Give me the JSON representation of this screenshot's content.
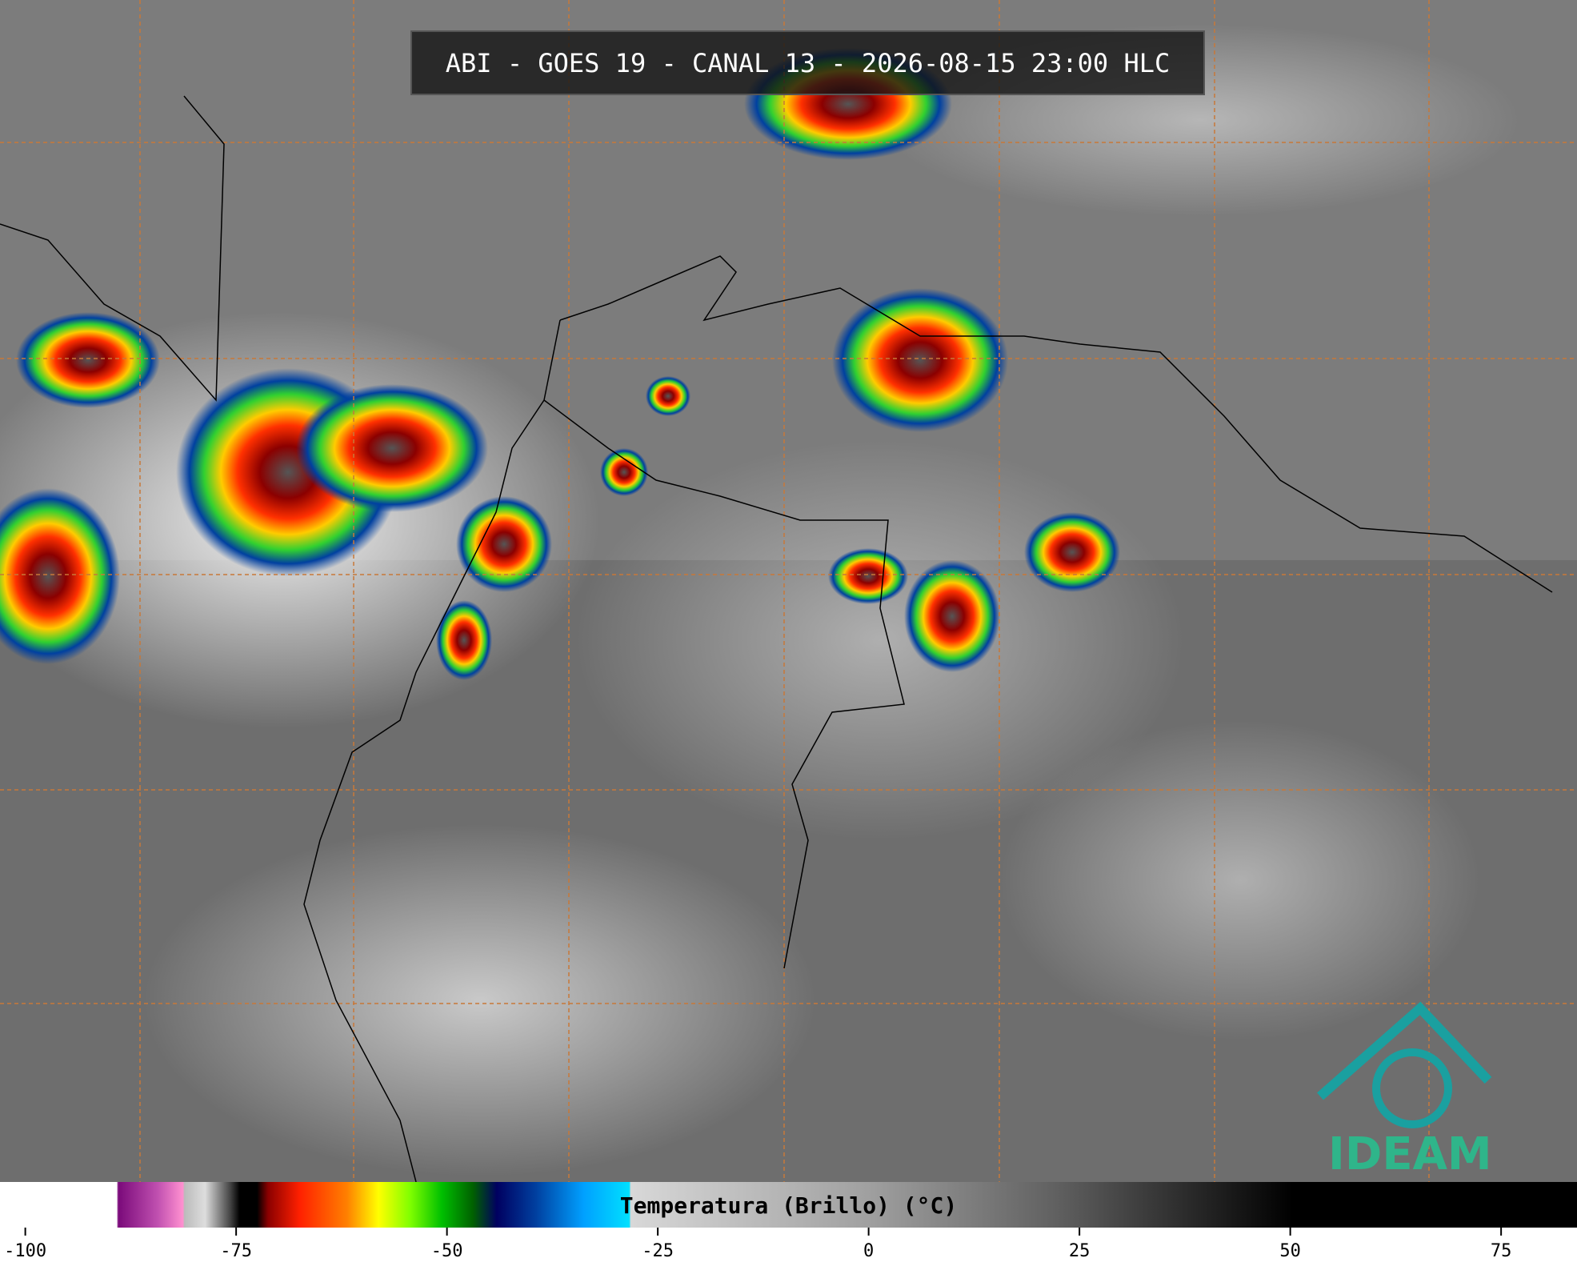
{
  "header": {
    "title": "ABI - GOES 19 - CANAL 13 - 2026-08-15 23:00 HLC"
  },
  "colorbar": {
    "label": "Temperatura (Brillo) (°C)",
    "range": [
      -103,
      84
    ],
    "ticks": [
      -100,
      -75,
      -50,
      -25,
      0,
      25,
      50,
      75
    ]
  },
  "logo": {
    "text": "IDEAM"
  }
}
